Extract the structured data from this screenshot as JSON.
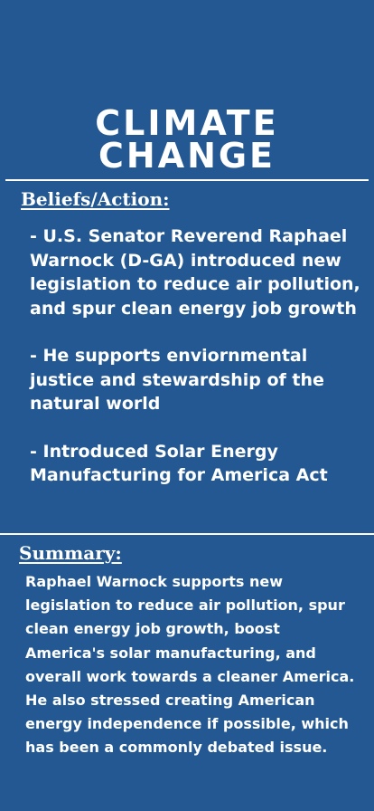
{
  "colors": {
    "background": "#245892",
    "text": "#ffffff"
  },
  "title": {
    "line1": "CLIMATE",
    "line2": "CHANGE"
  },
  "beliefs": {
    "heading": "Beliefs/Action:",
    "items": [
      "- U.S. Senator Reverend Raphael Warnock (D-GA) introduced new legislation to reduce air pollution, and spur clean energy job growth",
      "- He supports enviornmental justice and stewardship of the natural world",
      "- Introduced Solar Energy Manufacturing for America Act"
    ]
  },
  "summary": {
    "heading": "Summary:",
    "text": "Raphael Warnock supports new legislation to reduce air pollution, spur clean energy job growth, boost America's solar manufacturing, and overall work towards a cleaner America. He also stressed creating American energy independence if possible, which has been a commonly debated issue."
  }
}
